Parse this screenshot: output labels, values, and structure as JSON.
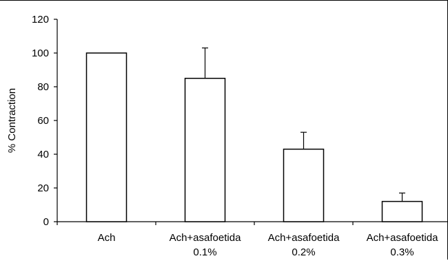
{
  "chart_data": {
    "type": "bar",
    "title": "",
    "xlabel": "",
    "ylabel": "% Contraction",
    "ylim": [
      0,
      120
    ],
    "yticks": [
      0,
      20,
      40,
      60,
      80,
      100,
      120
    ],
    "grid": false,
    "legend": "none",
    "categories": [
      [
        "Ach"
      ],
      [
        "Ach+asafoetida",
        "0.1%"
      ],
      [
        "Ach+asafoetida",
        "0.2%"
      ],
      [
        "Ach+asafoetida",
        "0.3%"
      ]
    ],
    "series": [
      {
        "values": [
          100,
          85,
          43,
          12
        ],
        "error_upper": [
          0,
          18,
          10,
          5
        ]
      }
    ],
    "colors": {
      "bar_fill": "#ffffff",
      "bar_stroke": "#000000",
      "axis": "#000000"
    }
  }
}
